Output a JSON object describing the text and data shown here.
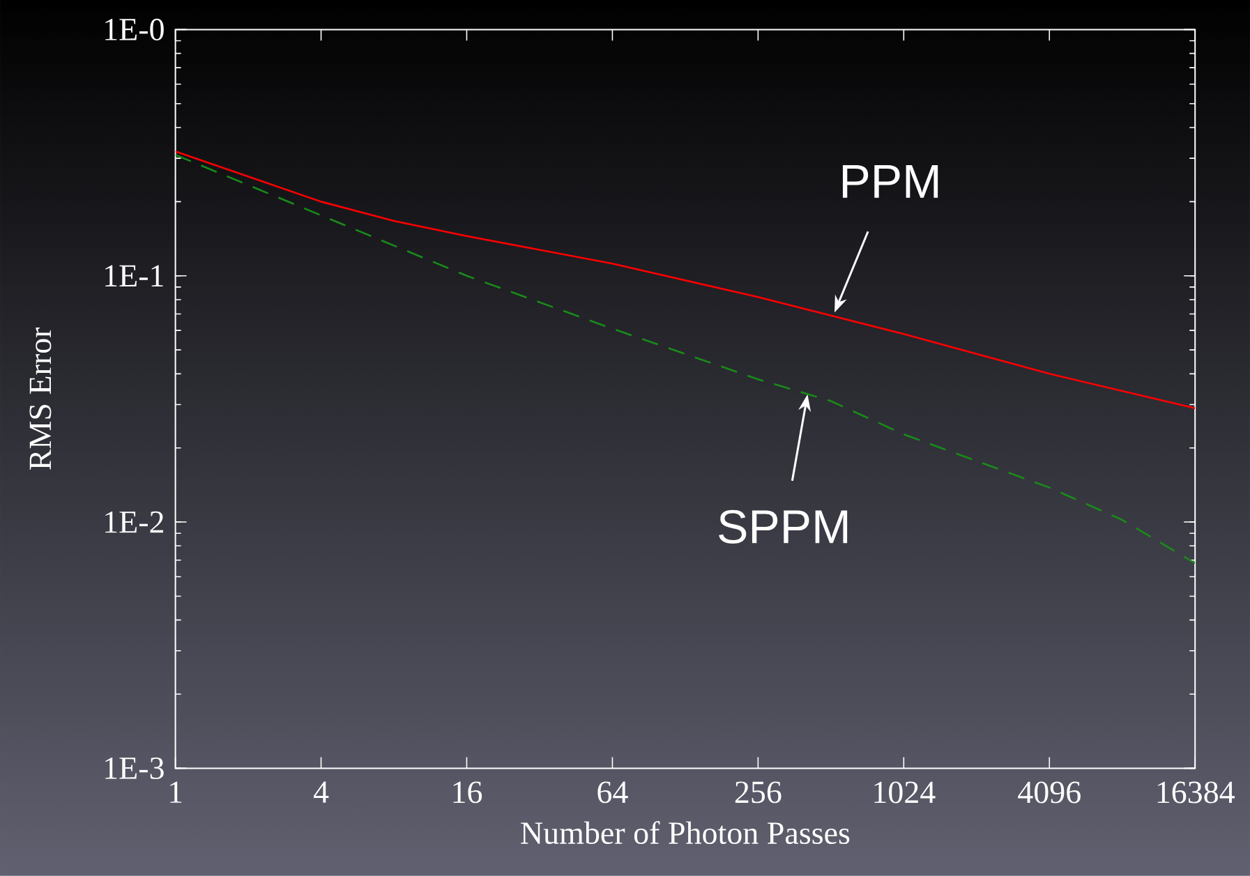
{
  "chart_data": {
    "type": "line",
    "xlabel": "Number of Photon Passes",
    "ylabel": "RMS Error",
    "log": "xy",
    "xlim": [
      1,
      16384
    ],
    "ylim": [
      0.001,
      1
    ],
    "xticks": [
      1,
      4,
      16,
      64,
      256,
      1024,
      4096,
      16384
    ],
    "yticks": [
      {
        "value": 0.001,
        "label": "1E-3"
      },
      {
        "value": 0.01,
        "label": "1E-2"
      },
      {
        "value": 0.1,
        "label": "1E-1"
      },
      {
        "value": 1,
        "label": "1E-0"
      }
    ],
    "series": [
      {
        "color": "#ff0000",
        "line_style": "solid",
        "x": [
          1,
          4,
          8,
          16,
          64,
          256,
          1024,
          4096,
          16384
        ],
        "values": [
          0.32,
          0.2,
          0.167,
          0.145,
          0.112,
          0.082,
          0.058,
          0.04,
          0.029
        ]
      },
      {
        "color": "#1a8a1a",
        "line_style": "dashed",
        "x": [
          1,
          4,
          16,
          64,
          256,
          512,
          1024,
          4096,
          8192,
          16384
        ],
        "values": [
          0.31,
          0.176,
          0.1,
          0.061,
          0.038,
          0.031,
          0.0227,
          0.0138,
          0.0102,
          0.0068
        ]
      }
    ],
    "annotations": [
      {
        "text": "PPM",
        "x": 530,
        "y": 0.071
      },
      {
        "text": "SPPM",
        "x": 410,
        "y": 0.033
      }
    ]
  }
}
